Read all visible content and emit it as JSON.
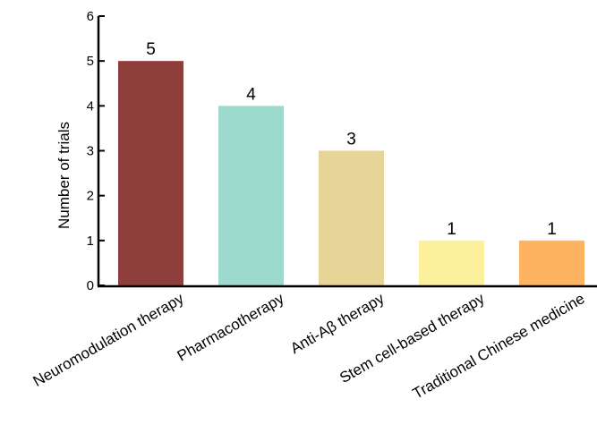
{
  "chart_data": {
    "type": "bar",
    "title": "",
    "xlabel": "",
    "ylabel": "Number of trials",
    "ylim": [
      0,
      6
    ],
    "yticks": [
      0,
      1,
      2,
      3,
      4,
      5,
      6
    ],
    "grid": false,
    "categories": [
      "Neuromodulation therapy",
      "Pharmacotherapy",
      "Anti-Aβ  therapy",
      "Stem cell-based therapy",
      "Traditional Chinese medicine"
    ],
    "values": [
      5,
      4,
      3,
      1,
      1
    ],
    "colors": [
      "#8f3f3b",
      "#9dd9cc",
      "#e7d597",
      "#fdf09c",
      "#fdb35f"
    ],
    "value_labels": [
      "5",
      "4",
      "3",
      "1",
      "1"
    ]
  }
}
